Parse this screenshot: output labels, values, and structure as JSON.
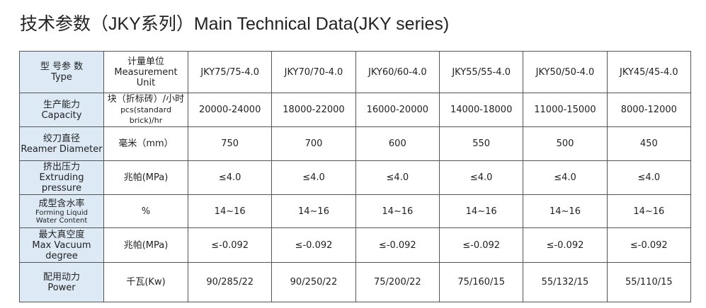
{
  "title": "技术参数（JKY系列）Main Technical Data(JKY series)",
  "table": {
    "rows": [
      {
        "label": [
          "型 号参 数",
          "Type"
        ],
        "unit": [
          "计量单位",
          "Measurement Unit"
        ],
        "values": [
          "JKY75/75-4.0",
          "JKY70/70-4.0",
          "JKY60/60-4.0",
          "JKY55/55-4.0",
          "JKY50/50-4.0",
          "JKY45/45-4.0"
        ]
      },
      {
        "label": [
          "生产能力",
          "Capacity"
        ],
        "unit": [
          "块（折标砖）/小时",
          "pcs(standard brick)/hr"
        ],
        "values": [
          "20000-24000",
          "18000-22000",
          "16000-20000",
          "14000-18000",
          "11000-15000",
          "8000-12000"
        ]
      },
      {
        "label": [
          "绞刀直径",
          "Reamer Diameter"
        ],
        "unit": [
          "毫米（mm）"
        ],
        "values": [
          "750",
          "700",
          "600",
          "550",
          "500",
          "450"
        ]
      },
      {
        "label": [
          "挤出压力",
          "Extruding pressure"
        ],
        "unit": [
          "兆帕(MPa)"
        ],
        "values": [
          "≤4.0",
          "≤4.0",
          "≤4.0",
          "≤4.0",
          "≤4.0",
          "≤4.0"
        ]
      },
      {
        "label": [
          "成型含水率",
          "Forming Liquid",
          "Water Content"
        ],
        "unit": [
          "%"
        ],
        "values": [
          "14~16",
          "14~16",
          "14~16",
          "14~16",
          "14~16",
          "14~16"
        ]
      },
      {
        "label": [
          "最大真空度",
          "Max Vacuum degree"
        ],
        "unit": [
          "兆帕(MPa)"
        ],
        "values": [
          "≤-0.092",
          "≤-0.092",
          "≤-0.092",
          "≤-0.092",
          "≤-0.092",
          "≤-0.092"
        ]
      },
      {
        "label": [
          "配用动力",
          "Power"
        ],
        "unit": [
          "千瓦(Kw)"
        ],
        "values": [
          "90/285/22",
          "90/250/22",
          "75/200/22",
          "75/160/15",
          "55/132/15",
          "55/110/15"
        ]
      }
    ]
  }
}
